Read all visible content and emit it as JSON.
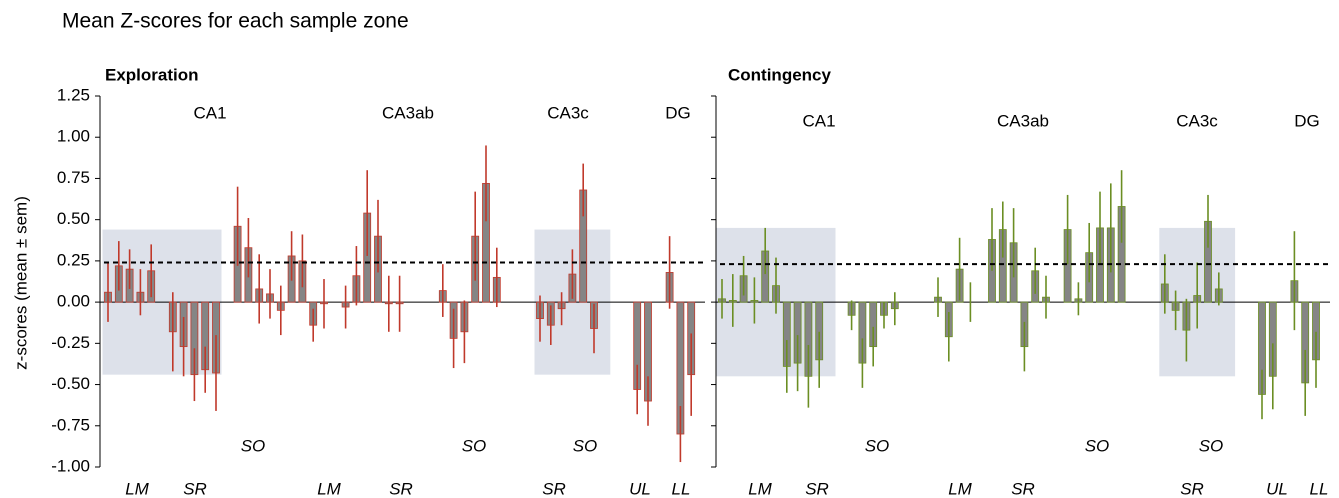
{
  "title": "Mean Z-scores for each sample zone",
  "chart_data": [
    {
      "type": "bar",
      "title": "Exploration",
      "ylabel": "z-scores (mean ± sem)",
      "ylim": [
        -1,
        1.25
      ],
      "yticks": [
        1.25,
        {
          "value": 1,
          "label": "1.00"
        },
        0.75,
        {
          "value": 0.5,
          "label": "0.50"
        },
        0.25,
        {
          "value": 0,
          "label": "0.00"
        },
        -0.25,
        {
          "value": -0.5,
          "label": "-0.50"
        },
        -0.75,
        {
          "value": -1,
          "label": "-1.00"
        }
      ],
      "color": "#c0392b",
      "reference_line": 0.24,
      "shaded_y": [
        -0.44,
        0.44
      ],
      "regions": [
        "CA1",
        "CA3ab",
        "CA3c",
        "DG"
      ],
      "layers": [
        "LM",
        "SR",
        "SO",
        "LM",
        "SR",
        "SO",
        "SR",
        "SO",
        "UL",
        "LL"
      ],
      "values": [
        0.06,
        0.22,
        0.2,
        0.06,
        0.19,
        null,
        -0.18,
        -0.27,
        -0.44,
        -0.41,
        -0.43,
        null,
        0.46,
        0.33,
        0.08,
        0.05,
        -0.05,
        0.28,
        0.25,
        -0.14,
        -0.01,
        null,
        -0.03,
        0.16,
        0.54,
        0.4,
        -0.01,
        -0.01,
        null,
        null,
        null,
        0.07,
        -0.22,
        -0.18,
        0.4,
        0.72,
        0.15,
        null,
        null,
        null,
        -0.1,
        -0.14,
        -0.04,
        0.17,
        0.68,
        -0.16,
        null,
        null,
        null,
        -0.53,
        -0.6,
        null,
        0.18,
        -0.8,
        -0.44
      ],
      "errors": [
        0.18,
        0.15,
        0.12,
        0.14,
        0.16,
        null,
        0.24,
        0.18,
        0.16,
        0.14,
        0.23,
        null,
        0.24,
        0.18,
        0.21,
        0.15,
        0.15,
        0.15,
        0.16,
        0.1,
        0.15,
        null,
        0.13,
        0.18,
        0.26,
        0.22,
        0.17,
        0.17,
        null,
        null,
        null,
        0.16,
        0.18,
        0.19,
        0.27,
        0.23,
        0.18,
        null,
        null,
        null,
        0.14,
        0.12,
        0.1,
        0.15,
        0.16,
        0.15,
        null,
        null,
        null,
        0.15,
        0.15,
        null,
        0.22,
        0.17,
        0.25
      ]
    },
    {
      "type": "bar",
      "title": "Contingency",
      "ylim": [
        -1,
        1.25
      ],
      "color": "#6b8e23",
      "reference_line": 0.23,
      "shaded_y": [
        -0.45,
        0.45
      ],
      "regions": [
        "CA1",
        "CA3ab",
        "CA3c",
        "DG"
      ],
      "layers": [
        "LM",
        "SR",
        "SO",
        "LM",
        "SR",
        "SO",
        "SR",
        "SO",
        "UL",
        "LL"
      ],
      "values": [
        0.02,
        0.01,
        0.16,
        0.01,
        0.31,
        0.1,
        -0.39,
        -0.37,
        -0.45,
        -0.35,
        null,
        null,
        -0.08,
        -0.37,
        -0.27,
        -0.08,
        -0.04,
        null,
        null,
        null,
        0.03,
        -0.21,
        0.2,
        0.0,
        null,
        0.38,
        0.44,
        0.36,
        -0.27,
        0.19,
        0.03,
        null,
        0.44,
        0.02,
        0.3,
        0.45,
        0.45,
        0.58,
        null,
        null,
        null,
        0.11,
        -0.05,
        -0.17,
        0.04,
        0.49,
        0.08,
        null,
        null,
        null,
        -0.56,
        -0.45,
        null,
        0.13,
        -0.49,
        -0.35
      ],
      "errors": [
        0.12,
        0.16,
        0.12,
        0.14,
        0.14,
        0.17,
        0.16,
        0.17,
        0.19,
        0.17,
        null,
        null,
        0.09,
        0.15,
        0.12,
        0.08,
        0.1,
        null,
        null,
        null,
        0.12,
        0.15,
        0.19,
        0.12,
        null,
        0.19,
        0.17,
        0.21,
        0.15,
        0.14,
        0.13,
        null,
        0.21,
        0.1,
        0.18,
        0.22,
        0.27,
        0.22,
        null,
        null,
        null,
        0.18,
        0.12,
        0.19,
        0.2,
        0.16,
        0.1,
        null,
        null,
        null,
        0.15,
        0.2,
        null,
        0.3,
        0.2,
        0.17
      ]
    }
  ]
}
